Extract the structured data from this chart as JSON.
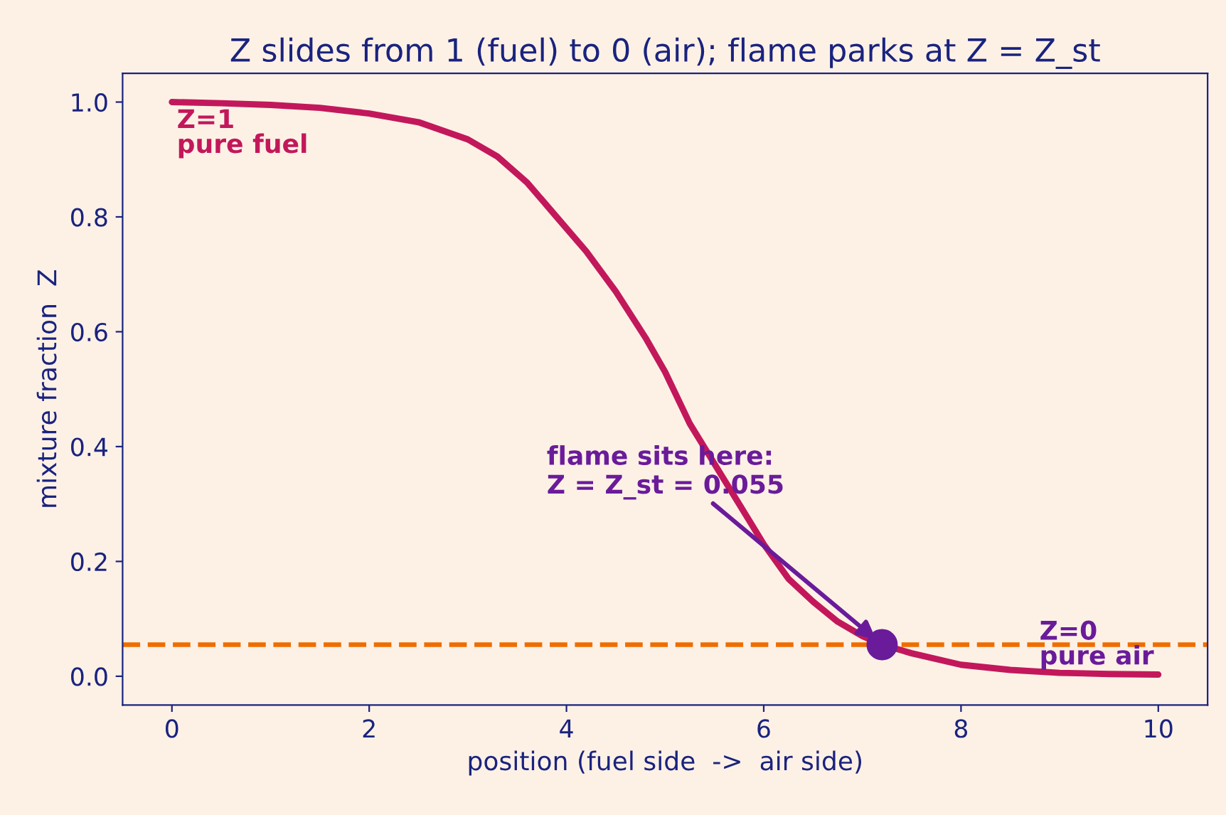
{
  "chart_data": {
    "type": "line",
    "title": "Z slides from 1 (fuel) to 0 (air); flame parks at Z = Z_st",
    "xlabel": "position (fuel side  ->  air side)",
    "ylabel": "mixture fraction  Z",
    "series": [
      {
        "color": "#c2185b",
        "marker": "none",
        "x": [
          0,
          0.5,
          1,
          1.5,
          2,
          2.5,
          3,
          3.3,
          3.6,
          3.9,
          4.2,
          4.5,
          4.8,
          5.0,
          5.25,
          5.5,
          5.75,
          6.0,
          6.25,
          6.5,
          6.75,
          7.0,
          7.2,
          7.5,
          8,
          8.5,
          9,
          9.5,
          10
        ],
        "values": [
          1.0,
          0.998,
          0.995,
          0.99,
          0.98,
          0.965,
          0.935,
          0.905,
          0.86,
          0.8,
          0.74,
          0.67,
          0.59,
          0.53,
          0.44,
          0.37,
          0.3,
          0.23,
          0.17,
          0.13,
          0.095,
          0.07,
          0.055,
          0.04,
          0.02,
          0.011,
          0.006,
          0.004,
          0.003
        ]
      },
      {
        "type": "scatter",
        "color": "#6a1b9a",
        "marker": "circle",
        "x": [
          7.2
        ],
        "values": [
          0.055
        ]
      }
    ],
    "ref_lines": [
      {
        "axis": "y",
        "value": 0.055,
        "color": "#ef6c00",
        "line_style": "dashed"
      }
    ],
    "annotations": [
      "Z=1\npure fuel",
      "Z=0\npure air",
      {
        "text": "flame sits here:\nZ = Z_st = 0.055",
        "x": 7.2,
        "y": 0.055
      }
    ],
    "xlim": [
      -0.5,
      10.5
    ],
    "ylim": [
      -0.05,
      1.05
    ],
    "xticks": [
      0,
      2,
      4,
      6,
      8,
      10
    ],
    "yticks": [
      {
        "value": 0,
        "label": "0.0"
      },
      {
        "value": 0.2,
        "label": "0.2"
      },
      {
        "value": 0.4,
        "label": "0.4"
      },
      {
        "value": 0.6,
        "label": "0.6"
      },
      {
        "value": 0.8,
        "label": "0.8"
      },
      {
        "value": 1,
        "label": "1.0"
      }
    ],
    "grid": false,
    "legend": false
  }
}
